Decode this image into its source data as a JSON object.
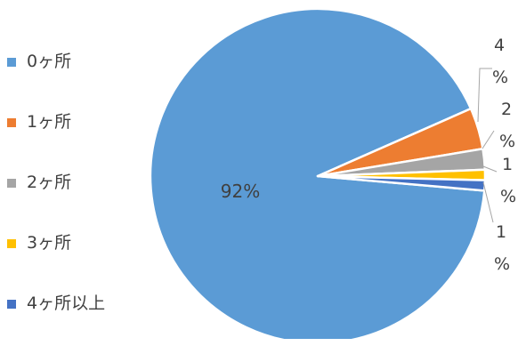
{
  "chart_data": {
    "type": "pie",
    "categories": [
      "0ヶ所",
      "1ヶ所",
      "2ヶ所",
      "3ヶ所",
      "4ヶ所以上"
    ],
    "values": [
      92,
      4,
      2,
      1,
      1
    ],
    "data_labels": [
      "92%",
      "4%",
      "2%",
      "1%",
      "1%"
    ],
    "colors": [
      "#5b9bd5",
      "#ed7d31",
      "#a5a5a5",
      "#ffc000",
      "#4472c4"
    ],
    "legend_position": "left",
    "title": ""
  },
  "legend": [
    {
      "label": "0ヶ所",
      "color": "#5b9bd5"
    },
    {
      "label": "1ヶ所",
      "color": "#ed7d31"
    },
    {
      "label": "2ヶ所",
      "color": "#a5a5a5"
    },
    {
      "label": "3ヶ所",
      "color": "#ffc000"
    },
    {
      "label": "4ヶ所以上",
      "color": "#4472c4"
    }
  ],
  "labels": {
    "main": "92%",
    "s1": {
      "num": "4",
      "pct": "%"
    },
    "s2": {
      "num": "2",
      "pct": "%"
    },
    "s3": {
      "num": "1",
      "pct": "%"
    },
    "s4": {
      "num": "1",
      "pct": "%"
    }
  }
}
